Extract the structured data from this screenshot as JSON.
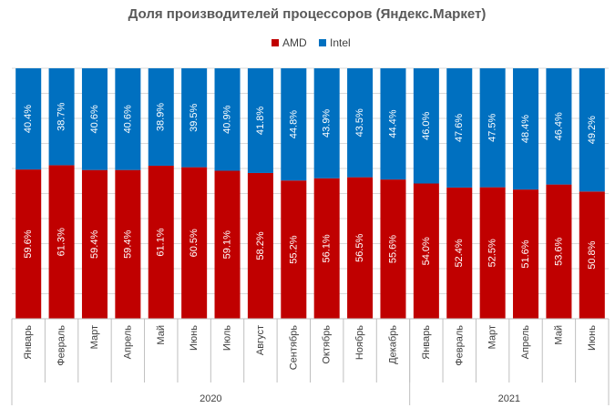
{
  "chart_data": {
    "type": "bar",
    "stacked": true,
    "title": "Доля производителей процессоров (Яндекс.Маркет)",
    "categories": [
      "Январь",
      "Февраль",
      "Март",
      "Апрель",
      "Май",
      "Июнь",
      "Июль",
      "Август",
      "Сентябрь",
      "Октябрь",
      "Ноябрь",
      "Декабрь",
      "Январь",
      "Февраль",
      "Март",
      "Апрель",
      "Май",
      "Июнь"
    ],
    "groups": [
      {
        "label": "2020",
        "count": 12
      },
      {
        "label": "2021",
        "count": 6
      }
    ],
    "series": [
      {
        "name": "AMD",
        "color": "#c00000",
        "values": [
          59.6,
          61.3,
          59.4,
          59.4,
          61.1,
          60.5,
          59.1,
          58.2,
          55.2,
          56.1,
          56.5,
          55.6,
          54.0,
          52.4,
          52.5,
          51.6,
          53.6,
          50.8
        ],
        "labels": [
          "59.6%",
          "61.3%",
          "59.4%",
          "59.4%",
          "61.1%",
          "60.5%",
          "59.1%",
          "58.2%",
          "55.2%",
          "56.1%",
          "56.5%",
          "55.6%",
          "54.0%",
          "52.4%",
          "52.5%",
          "51.6%",
          "53.6%",
          "50.8%"
        ]
      },
      {
        "name": "Intel",
        "color": "#0070c0",
        "values": [
          40.4,
          38.7,
          40.6,
          40.6,
          38.9,
          39.5,
          40.9,
          41.8,
          44.8,
          43.9,
          43.5,
          44.4,
          46.0,
          47.6,
          47.5,
          48.4,
          46.4,
          49.2
        ],
        "labels": [
          "40.4%",
          "38.7%",
          "40.6%",
          "40.6%",
          "38.9%",
          "39.5%",
          "40.9%",
          "41.8%",
          "44.8%",
          "43.9%",
          "43.5%",
          "44.4%",
          "46.0%",
          "47.6%",
          "47.5%",
          "48.4%",
          "46.4%",
          "49.2%"
        ]
      }
    ],
    "ylim": [
      0,
      100
    ],
    "grid": true,
    "legend_position": "top-center"
  }
}
